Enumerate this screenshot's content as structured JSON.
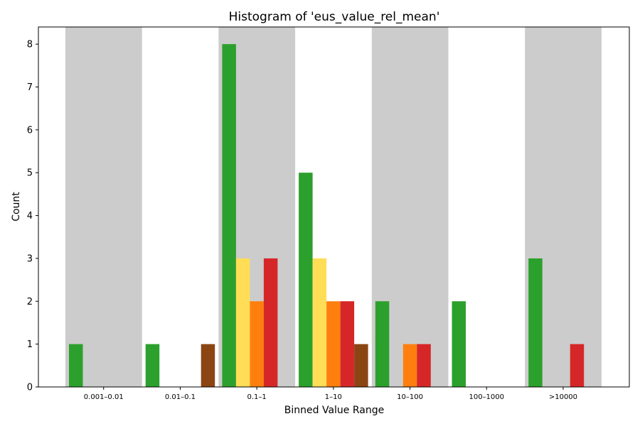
{
  "chart_data": {
    "type": "bar",
    "title": "Histogram of 'eus_value_rel_mean'",
    "xlabel": "Binned Value Range",
    "ylabel": "Count",
    "categories": [
      "0.001–0.01",
      "0.01–0.1",
      "0.1–1",
      "1–10",
      "10–100",
      "100–1000",
      ">10000"
    ],
    "series": [
      {
        "color": "#2ca02c",
        "values": [
          1,
          1,
          8,
          5,
          2,
          2,
          3
        ]
      },
      {
        "color": "#ffdd57",
        "values": [
          0,
          0,
          3,
          3,
          0,
          0,
          0
        ]
      },
      {
        "color": "#ff7f0e",
        "values": [
          0,
          0,
          2,
          2,
          1,
          0,
          0
        ]
      },
      {
        "color": "#d62728",
        "values": [
          0,
          0,
          3,
          2,
          1,
          0,
          1
        ]
      },
      {
        "color": "#8b4513",
        "values": [
          0,
          1,
          0,
          1,
          0,
          0,
          0
        ]
      }
    ],
    "ylim": [
      0,
      8.4
    ],
    "yticks": [
      0,
      1,
      2,
      3,
      4,
      5,
      6,
      7,
      8
    ],
    "alternating_bands": true,
    "band_color": "#cccccc",
    "grid": false
  }
}
